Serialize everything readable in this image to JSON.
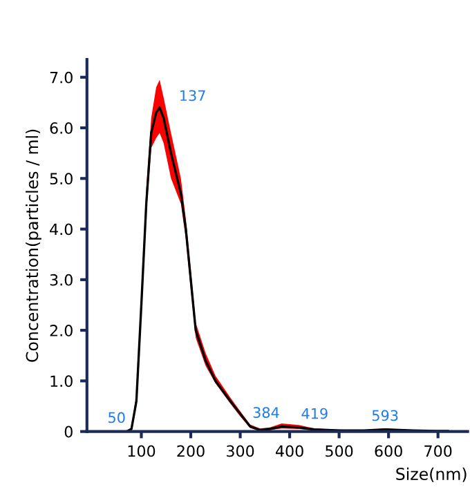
{
  "chart_data": {
    "type": "line",
    "xlabel": "Size(nm)",
    "ylabel": "Concentration(particles / ml)",
    "x": [
      60,
      70,
      80,
      90,
      100,
      110,
      120,
      130,
      137,
      145,
      160,
      180,
      190,
      200,
      210,
      230,
      250,
      280,
      300,
      320,
      340,
      360,
      384,
      419,
      450,
      500,
      550,
      593,
      650,
      700,
      720
    ],
    "series": [
      {
        "color": "#000000",
        "values": [
          0,
          0,
          0.05,
          0.6,
          2.5,
          4.5,
          5.9,
          6.3,
          6.4,
          6.2,
          5.5,
          4.7,
          4.0,
          3.0,
          2.0,
          1.4,
          1.0,
          0.6,
          0.35,
          0.1,
          0.03,
          0.05,
          0.1,
          0.08,
          0.04,
          0.02,
          0.02,
          0.04,
          0.02,
          0.01,
          0.01
        ],
        "lower": [
          0,
          0,
          0.03,
          0.5,
          2.3,
          4.3,
          5.6,
          5.8,
          5.9,
          5.7,
          5.0,
          4.5,
          3.8,
          2.8,
          1.85,
          1.3,
          0.95,
          0.55,
          0.3,
          0.07,
          0.01,
          0.03,
          0.06,
          0.05,
          0.02,
          0.01,
          0.01,
          0.02,
          0.01,
          0,
          0
        ],
        "upper": [
          0,
          0,
          0.08,
          0.75,
          2.7,
          4.8,
          6.2,
          6.8,
          6.95,
          6.6,
          5.9,
          5.0,
          4.2,
          3.2,
          2.15,
          1.55,
          1.1,
          0.67,
          0.4,
          0.14,
          0.06,
          0.08,
          0.16,
          0.13,
          0.06,
          0.04,
          0.03,
          0.06,
          0.03,
          0.02,
          0.02
        ]
      }
    ],
    "annotations": [
      {
        "text": "50",
        "x": 50,
        "y": 0
      },
      {
        "text": "137",
        "x": 137,
        "y": 6.4
      },
      {
        "text": "384",
        "x": 384,
        "y": 0.1
      },
      {
        "text": "419",
        "x": 419,
        "y": 0.08
      },
      {
        "text": "593",
        "x": 593,
        "y": 0.04
      }
    ],
    "xlim": [
      -10,
      760
    ],
    "ylim": [
      0,
      7.35
    ],
    "xticks": [
      100,
      200,
      300,
      400,
      500,
      600,
      700
    ],
    "yticks": [
      0,
      {
        "value": 1,
        "label": "1.0"
      },
      {
        "value": 2,
        "label": "2.0"
      },
      {
        "value": 3,
        "label": "3.0"
      },
      {
        "value": 4,
        "label": "4.0"
      },
      {
        "value": 5,
        "label": "5.0"
      },
      {
        "value": 6,
        "label": "6.0"
      },
      {
        "value": 7,
        "label": "7.0"
      }
    ],
    "grid": false,
    "legend": false,
    "marker": "none",
    "line_style": "solid"
  }
}
